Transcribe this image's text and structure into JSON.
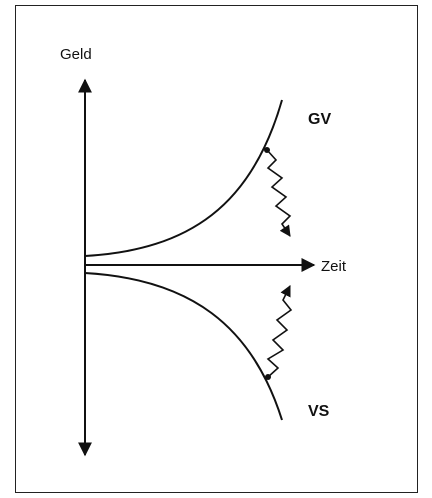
{
  "labels": {
    "y_axis": "Geld",
    "x_axis": "Zeit",
    "upper_curve": "GV",
    "lower_curve": "VS"
  }
}
